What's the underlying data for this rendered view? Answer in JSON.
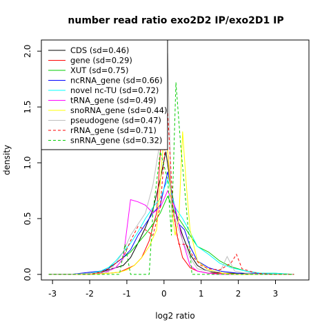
{
  "chart_data": {
    "type": "line",
    "title": "number read ratio exo2D2 IP/exo2D1 IP",
    "xlabel": "log2 ratio",
    "ylabel": "density",
    "xlim": [
      -3.3,
      3.9
    ],
    "ylim": [
      -0.05,
      2.1
    ],
    "xticks": [
      -3,
      -2,
      -1,
      0,
      1,
      2,
      3
    ],
    "yticks": [
      0.0,
      0.5,
      1.0,
      1.5,
      2.0
    ],
    "xtick_labels": [
      "-3",
      "-2",
      "-1",
      "0",
      "1",
      "2",
      "3"
    ],
    "ytick_labels": [
      "0.0",
      "0.5",
      "1.0",
      "1.5",
      "2.0"
    ],
    "grid": false,
    "legend_position": "top-left",
    "series": [
      {
        "name": "CDS (sd=0.46)",
        "color": "#000000",
        "dash": "solid",
        "x": [
          -3.1,
          -2.5,
          -2.0,
          -1.7,
          -1.5,
          -1.3,
          -1.1,
          -0.9,
          -0.7,
          -0.5,
          -0.3,
          -0.1,
          0.05,
          0.2,
          0.35,
          0.5,
          0.7,
          0.9,
          1.1,
          1.3,
          1.6,
          2.0,
          2.5,
          3.0,
          3.5
        ],
        "y": [
          0.0,
          0.0,
          0.01,
          0.02,
          0.04,
          0.06,
          0.08,
          0.15,
          0.28,
          0.42,
          0.58,
          0.85,
          1.1,
          0.75,
          0.5,
          0.35,
          0.18,
          0.08,
          0.04,
          0.02,
          0.01,
          0.01,
          0.0,
          0.0,
          0.0
        ]
      },
      {
        "name": "gene (sd=0.29)",
        "color": "#ff0000",
        "dash": "solid",
        "x": [
          -3.1,
          -2.5,
          -2.0,
          -1.5,
          -1.2,
          -1.0,
          -0.8,
          -0.6,
          -0.4,
          -0.2,
          0.0,
          0.1,
          0.2,
          0.35,
          0.5,
          0.7,
          0.9,
          1.2,
          1.6,
          2.0,
          2.5,
          3.0,
          3.5
        ],
        "y": [
          0.0,
          0.0,
          0.0,
          0.01,
          0.02,
          0.05,
          0.08,
          0.15,
          0.3,
          0.55,
          1.63,
          1.1,
          0.7,
          0.35,
          0.15,
          0.06,
          0.03,
          0.01,
          0.01,
          0.0,
          0.0,
          0.0,
          0.0
        ]
      },
      {
        "name": "XUT (sd=0.75)",
        "color": "#00cc00",
        "dash": "solid",
        "x": [
          -3.1,
          -2.5,
          -2.0,
          -1.7,
          -1.5,
          -1.3,
          -1.1,
          -0.9,
          -0.7,
          -0.5,
          -0.3,
          -0.1,
          0.1,
          0.3,
          0.5,
          0.7,
          0.9,
          1.2,
          1.5,
          1.8,
          2.2,
          2.6,
          3.0,
          3.5
        ],
        "y": [
          0.0,
          0.0,
          0.01,
          0.03,
          0.06,
          0.1,
          0.15,
          0.2,
          0.28,
          0.36,
          0.45,
          0.55,
          0.7,
          0.55,
          0.45,
          0.35,
          0.25,
          0.2,
          0.12,
          0.07,
          0.03,
          0.01,
          0.01,
          0.0
        ]
      },
      {
        "name": "ncRNA_gene (sd=0.66)",
        "color": "#0000ff",
        "dash": "solid",
        "x": [
          -3.1,
          -2.5,
          -2.0,
          -1.7,
          -1.5,
          -1.3,
          -1.1,
          -0.9,
          -0.7,
          -0.5,
          -0.3,
          -0.1,
          0.1,
          0.25,
          0.4,
          0.55,
          0.7,
          0.9,
          1.2,
          1.5,
          2.0,
          2.5,
          3.0,
          3.5
        ],
        "y": [
          0.0,
          0.0,
          0.02,
          0.03,
          0.05,
          0.1,
          0.15,
          0.22,
          0.35,
          0.45,
          0.55,
          0.62,
          0.92,
          0.65,
          0.45,
          0.4,
          0.25,
          0.12,
          0.06,
          0.03,
          0.01,
          0.01,
          0.0,
          0.0
        ]
      },
      {
        "name": "novel nc-TU (sd=0.72)",
        "color": "#00ffff",
        "dash": "solid",
        "x": [
          -3.1,
          -2.5,
          -2.0,
          -1.7,
          -1.5,
          -1.3,
          -1.1,
          -0.9,
          -0.7,
          -0.5,
          -0.3,
          -0.1,
          0.1,
          0.3,
          0.5,
          0.7,
          0.9,
          1.2,
          1.5,
          1.8,
          2.2,
          2.6,
          3.0,
          3.5
        ],
        "y": [
          0.0,
          0.0,
          0.01,
          0.03,
          0.06,
          0.12,
          0.2,
          0.28,
          0.38,
          0.5,
          0.6,
          0.68,
          0.85,
          0.6,
          0.5,
          0.38,
          0.25,
          0.18,
          0.1,
          0.06,
          0.03,
          0.01,
          0.01,
          0.0
        ]
      },
      {
        "name": "tRNA_gene (sd=0.49)",
        "color": "#ff00ff",
        "dash": "solid",
        "x": [
          -3.1,
          -2.5,
          -2.0,
          -1.7,
          -1.5,
          -1.3,
          -1.1,
          -0.9,
          -0.7,
          -0.5,
          -0.3,
          -0.1,
          0.1,
          0.3,
          0.5,
          0.7,
          0.9,
          1.2,
          1.5,
          2.0,
          2.5,
          3.0,
          3.5
        ],
        "y": [
          0.0,
          0.0,
          0.0,
          0.01,
          0.03,
          0.06,
          0.14,
          0.67,
          0.65,
          0.62,
          0.55,
          0.6,
          0.75,
          0.6,
          0.3,
          0.08,
          0.03,
          0.01,
          0.0,
          0.0,
          0.0,
          0.0,
          0.0
        ]
      },
      {
        "name": "snoRNA_gene (sd=0.44)",
        "color": "#ffff00",
        "dash": "solid",
        "x": [
          -3.1,
          -2.5,
          -2.0,
          -1.5,
          -1.2,
          -1.0,
          -0.8,
          -0.6,
          -0.4,
          -0.2,
          0.0,
          0.1,
          0.2,
          0.3,
          0.4,
          0.5,
          0.6,
          0.7,
          0.9,
          1.2,
          1.6,
          2.0,
          2.5,
          3.0,
          3.5
        ],
        "y": [
          0.0,
          0.0,
          0.0,
          0.01,
          0.02,
          0.04,
          0.08,
          0.15,
          0.25,
          0.4,
          1.25,
          1.1,
          0.6,
          0.35,
          0.5,
          1.28,
          0.8,
          0.4,
          0.12,
          0.04,
          0.01,
          0.0,
          0.0,
          0.0,
          0.0
        ]
      },
      {
        "name": "pseudogene (sd=0.47)",
        "color": "#bebebe",
        "dash": "solid",
        "x": [
          -3.1,
          -2.5,
          -2.0,
          -1.5,
          -1.3,
          -1.1,
          -0.9,
          -0.7,
          -0.5,
          -0.3,
          -0.1,
          0.1,
          0.2,
          0.35,
          0.5,
          0.7,
          0.9,
          1.2,
          1.5,
          1.7,
          1.9,
          2.2,
          2.6,
          3.0,
          3.5
        ],
        "y": [
          0.0,
          0.0,
          0.01,
          0.02,
          0.1,
          0.2,
          0.35,
          0.45,
          0.55,
          0.8,
          1.2,
          1.98,
          0.6,
          0.45,
          0.3,
          0.15,
          0.05,
          0.03,
          0.02,
          0.16,
          0.03,
          0.01,
          0.0,
          0.0,
          0.0
        ]
      },
      {
        "name": "rRNA_gene (sd=0.71)",
        "color": "#ff0000",
        "dash": "dashed",
        "x": [
          -3.1,
          -2.5,
          -2.0,
          -1.7,
          -1.5,
          -1.3,
          -1.1,
          -0.9,
          -0.7,
          -0.5,
          -0.3,
          -0.1,
          0.1,
          0.25,
          0.4,
          0.6,
          0.8,
          1.0,
          1.2,
          1.5,
          1.8,
          1.95,
          2.1,
          2.5,
          3.0,
          3.5
        ],
        "y": [
          0.0,
          0.0,
          0.0,
          0.02,
          0.05,
          0.1,
          0.15,
          0.3,
          0.43,
          0.4,
          0.35,
          0.6,
          1.45,
          0.55,
          0.27,
          0.27,
          0.15,
          0.08,
          0.05,
          0.04,
          0.1,
          0.18,
          0.05,
          0.01,
          0.0,
          0.0
        ]
      },
      {
        "name": "snRNA_gene (sd=0.32)",
        "color": "#00cc00",
        "dash": "dashed",
        "x": [
          -3.1,
          -2.5,
          -2.0,
          -1.5,
          -1.2,
          -1.05,
          -0.9,
          -0.6,
          -0.4,
          -0.3,
          -0.1,
          0.1,
          0.2,
          0.32,
          0.45,
          0.6,
          0.75,
          0.9,
          1.2,
          1.6,
          2.0,
          2.5,
          3.0,
          3.5
        ],
        "y": [
          0.0,
          0.0,
          0.0,
          0.0,
          0.0,
          0.27,
          0.0,
          0.0,
          0.0,
          0.55,
          1.1,
          0.85,
          0.35,
          1.72,
          1.15,
          0.6,
          0.0,
          0.0,
          0.0,
          0.0,
          0.0,
          0.0,
          0.0,
          0.0
        ]
      }
    ]
  }
}
